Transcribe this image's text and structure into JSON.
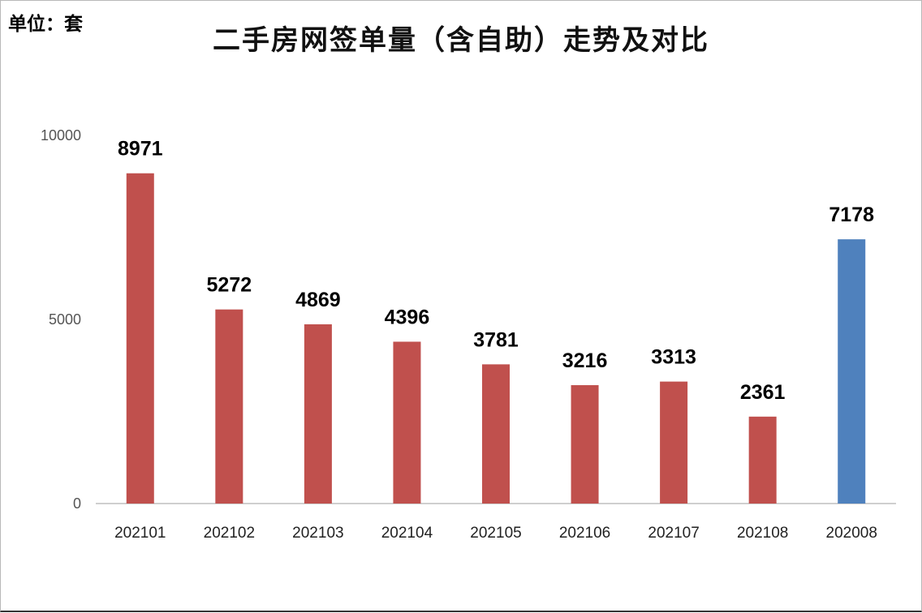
{
  "chart_data": {
    "type": "bar",
    "title": "二手房网签单量（含自助）走势及对比",
    "unit_label": "单位：套",
    "xlabel": "",
    "ylabel": "",
    "ylim": [
      0,
      10000
    ],
    "yticks": [
      0,
      5000,
      10000
    ],
    "grid": false,
    "legend": "none",
    "categories": [
      "202101",
      "202102",
      "202103",
      "202104",
      "202105",
      "202106",
      "202107",
      "202108",
      "202008"
    ],
    "values": [
      8971,
      5272,
      4869,
      4396,
      3781,
      3216,
      3313,
      2361,
      7178
    ],
    "colors": [
      "#c0504d",
      "#c0504d",
      "#c0504d",
      "#c0504d",
      "#c0504d",
      "#c0504d",
      "#c0504d",
      "#c0504d",
      "#4f81bd"
    ]
  }
}
